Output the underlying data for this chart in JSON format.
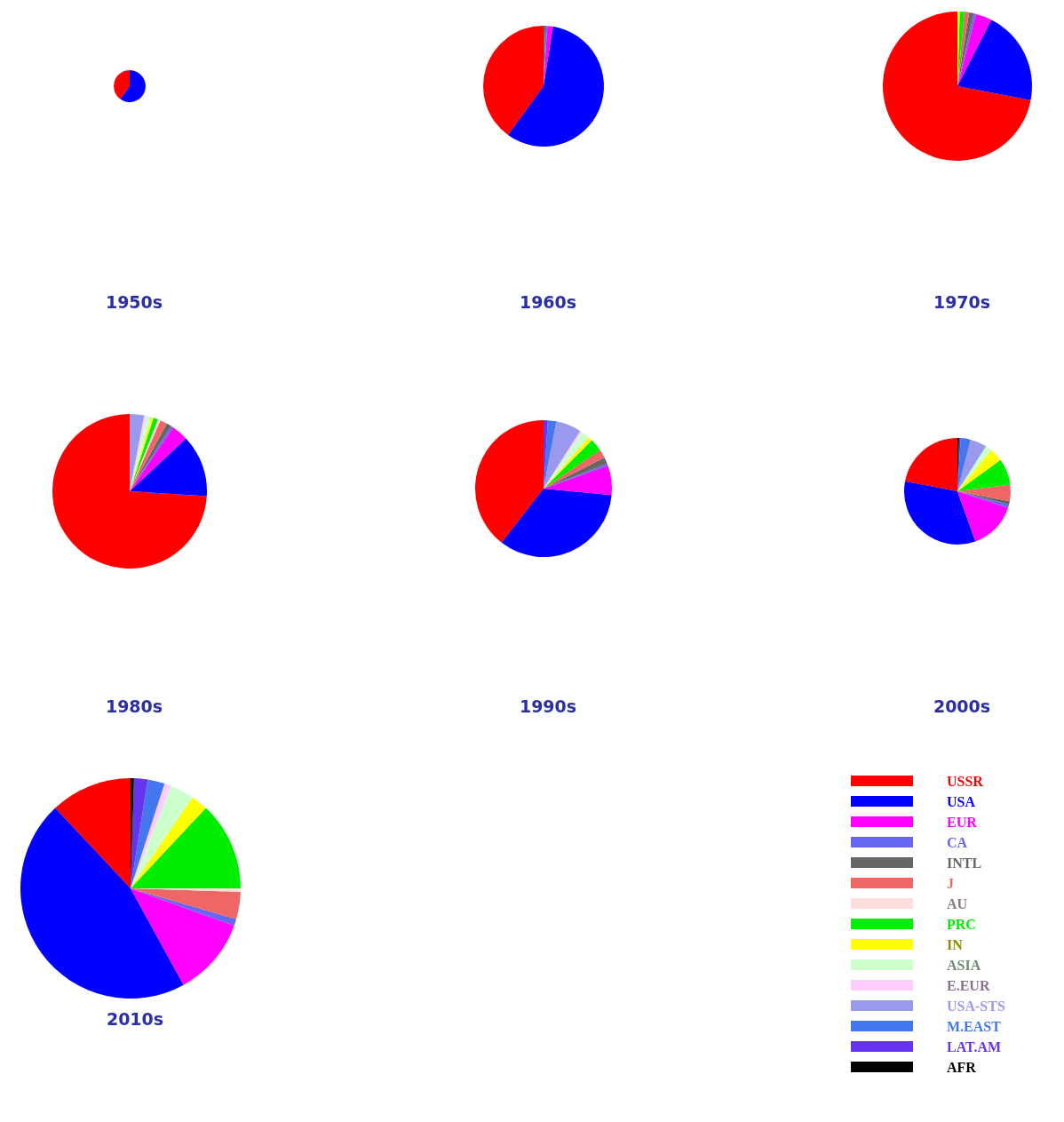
{
  "chart_data": [
    {
      "type": "pie",
      "title": "1950s",
      "legend": false,
      "categories": [
        null,
        null,
        null,
        null,
        null,
        null,
        null,
        null,
        null,
        null,
        null,
        null,
        null,
        null,
        null
      ],
      "colors": [
        "#ff0000",
        "#0000ff",
        "#ff00ff",
        "#6666ee",
        "#666666",
        "#ee6666",
        "#ffdddd",
        "#00ee00",
        "#ffff00",
        "#ccffcc",
        "#ffccff",
        "#9999ee",
        "#4477ee",
        "#6633ee",
        "#000000"
      ],
      "values": [
        40,
        60,
        0,
        0,
        0,
        0,
        0,
        0,
        0,
        0,
        0,
        0,
        0,
        0,
        0
      ]
    },
    {
      "type": "pie",
      "title": "1960s",
      "legend": false,
      "categories": [
        null,
        null,
        null,
        null,
        null,
        null,
        null,
        null,
        null,
        null,
        null,
        null,
        null,
        null,
        null
      ],
      "colors": [
        "#ff0000",
        "#0000ff",
        "#ff00ff",
        "#6666ee",
        "#666666",
        "#ee6666",
        "#ffdddd",
        "#00ee00",
        "#ffff00",
        "#ccffcc",
        "#ffccff",
        "#9999ee",
        "#4477ee",
        "#6633ee",
        "#000000"
      ],
      "values": [
        40,
        57.5,
        1.5,
        0.5,
        0.5,
        0,
        0,
        0,
        0,
        0,
        0,
        0,
        0,
        0,
        0
      ]
    },
    {
      "type": "pie",
      "title": "1970s",
      "legend": false,
      "categories": [
        null,
        null,
        null,
        null,
        null,
        null,
        null,
        null,
        null,
        null,
        null,
        null,
        null,
        null,
        null
      ],
      "colors": [
        "#ff0000",
        "#0000ff",
        "#ff00ff",
        "#6666ee",
        "#666666",
        "#ee6666",
        "#ffdddd",
        "#00ee00",
        "#ffff00",
        "#ccffcc",
        "#ffccff",
        "#9999ee",
        "#4477ee",
        "#6633ee",
        "#000000"
      ],
      "values": [
        72,
        20.5,
        3.5,
        0.5,
        1,
        1,
        0,
        1,
        0.5,
        0,
        0,
        0,
        0,
        0,
        0
      ]
    },
    {
      "type": "pie",
      "title": "1980s",
      "legend": false,
      "categories": [
        null,
        null,
        null,
        null,
        null,
        null,
        null,
        null,
        null,
        null,
        null,
        null,
        null,
        null,
        null
      ],
      "colors": [
        "#ff0000",
        "#0000ff",
        "#ff00ff",
        "#6666ee",
        "#666666",
        "#ee6666",
        "#ffdddd",
        "#00ee00",
        "#ffff00",
        "#ccffcc",
        "#ffccff",
        "#9999ee",
        "#4477ee",
        "#6633ee",
        "#000000"
      ],
      "values": [
        74,
        13,
        3.5,
        0.5,
        1,
        1.5,
        0.5,
        1,
        0.5,
        1,
        0.5,
        3,
        0,
        0,
        0
      ]
    },
    {
      "type": "pie",
      "title": "1990s",
      "legend": false,
      "categories": [
        null,
        null,
        null,
        null,
        null,
        null,
        null,
        null,
        null,
        null,
        null,
        null,
        null,
        null,
        null
      ],
      "colors": [
        "#ff0000",
        "#0000ff",
        "#ff00ff",
        "#6666ee",
        "#666666",
        "#ee6666",
        "#ffdddd",
        "#00ee00",
        "#ffff00",
        "#ccffcc",
        "#ffccff",
        "#9999ee",
        "#4477ee",
        "#6633ee",
        "#000000"
      ],
      "values": [
        39.5,
        34,
        7,
        0.5,
        1.5,
        2,
        0,
        3,
        1,
        2,
        0.5,
        6,
        2,
        1,
        0
      ]
    },
    {
      "type": "pie",
      "title": "2000s",
      "legend": false,
      "categories": [
        null,
        null,
        null,
        null,
        null,
        null,
        null,
        null,
        null,
        null,
        null,
        null,
        null,
        null,
        null
      ],
      "colors": [
        "#ff0000",
        "#0000ff",
        "#ff00ff",
        "#6666ee",
        "#666666",
        "#ee6666",
        "#ffdddd",
        "#00ee00",
        "#ffff00",
        "#ccffcc",
        "#ffccff",
        "#9999ee",
        "#4477ee",
        "#6633ee",
        "#000000"
      ],
      "values": [
        22,
        33.5,
        14.5,
        1,
        1,
        5,
        0,
        8,
        4,
        2,
        0,
        5,
        3,
        0.5,
        0.5
      ]
    },
    {
      "type": "pie",
      "title": "2010s",
      "legend": "right",
      "categories": [
        "USSR",
        "USA",
        "EUR",
        "CA",
        "INTL",
        "J",
        "AU",
        "PRC",
        "IN",
        "ASIA",
        "E.EUR",
        "USA-STS",
        "M.EAST",
        "LAT.AM",
        "AFR"
      ],
      "colors": [
        "#ff0000",
        "#0000ff",
        "#ff00ff",
        "#6666ee",
        "#666666",
        "#ee6666",
        "#ffdddd",
        "#00ee00",
        "#ffff00",
        "#ccffcc",
        "#ffccff",
        "#9999ee",
        "#4477ee",
        "#6633ee",
        "#000000"
      ],
      "values": [
        12,
        46,
        11.5,
        1,
        0,
        4,
        0.5,
        13,
        2.5,
        3.5,
        1,
        0,
        2.5,
        2,
        0.5
      ]
    }
  ]
}
